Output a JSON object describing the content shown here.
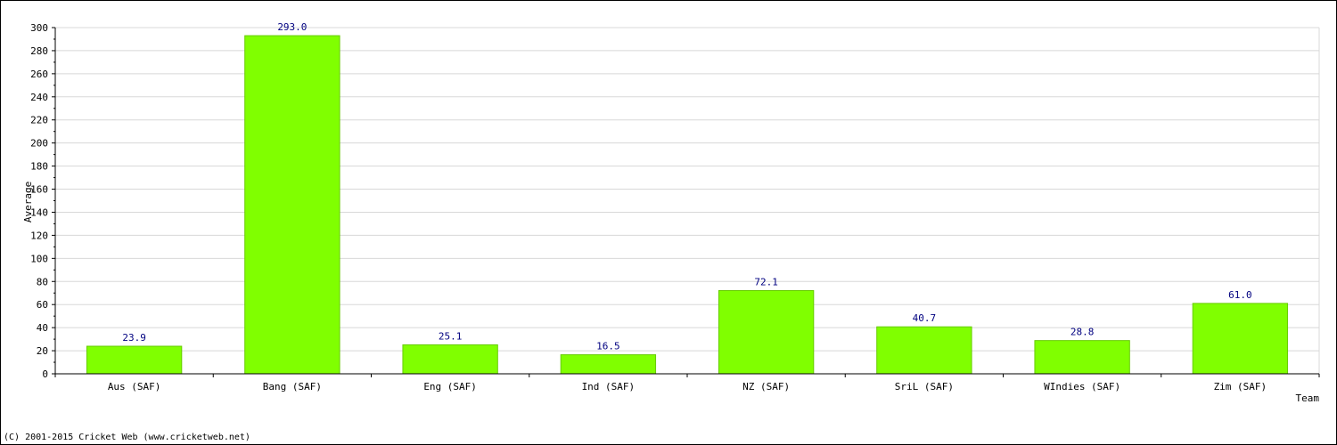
{
  "chart_data": {
    "type": "bar",
    "categories": [
      "Aus (SAF)",
      "Bang (SAF)",
      "Eng (SAF)",
      "Ind (SAF)",
      "NZ (SAF)",
      "SriL (SAF)",
      "WIndies (SAF)",
      "Zim (SAF)"
    ],
    "values": [
      23.9,
      293.0,
      25.1,
      16.5,
      72.1,
      40.7,
      28.8,
      61.0
    ],
    "data_labels": [
      "23.9",
      "293.0",
      "25.1",
      "16.5",
      "72.1",
      "40.7",
      "28.8",
      "61.0"
    ],
    "xlabel": "Team",
    "ylabel": "Average",
    "ylim": [
      0,
      300
    ],
    "y_ticks": [
      "0",
      "20",
      "40",
      "60",
      "80",
      "100",
      "120",
      "140",
      "160",
      "180",
      "200",
      "220",
      "240",
      "260",
      "280",
      "300"
    ],
    "grid": true,
    "legend": "none",
    "colors": {
      "bar": "#80ff00",
      "bar_edge": "#66cc00",
      "grid": "#d8d8d8",
      "axis": "#000000",
      "data_label": "#000080"
    }
  },
  "footer": {
    "copyright": "(C) 2001-2015 Cricket Web (www.cricketweb.net)"
  }
}
